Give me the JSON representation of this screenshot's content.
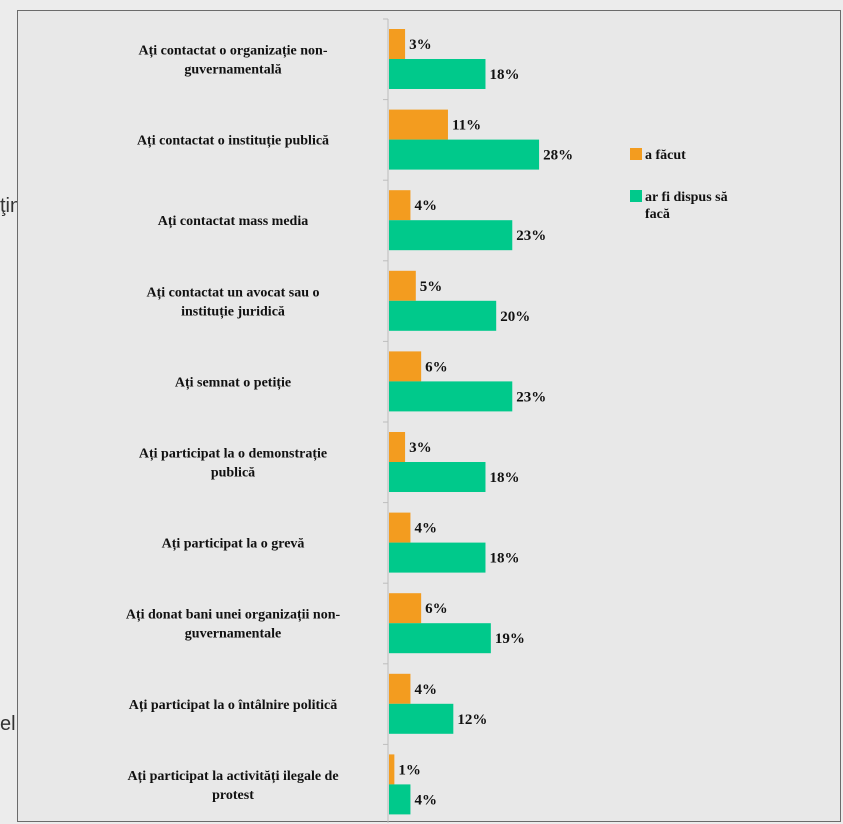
{
  "background_text": {
    "frag1": "ţin",
    "frag2": "el"
  },
  "chart_data": {
    "type": "bar",
    "orientation": "horizontal",
    "categories": [
      [
        "Ați contactat o organizație non-",
        "guvernamentală"
      ],
      [
        "Ați contactat o instituție publică"
      ],
      [
        "Ați contactat mass media"
      ],
      [
        "Ați contactat un avocat sau o",
        "instituție juridică"
      ],
      [
        "Ați semnat o petiție"
      ],
      [
        "Ați participat la o demonstrație",
        "publică"
      ],
      [
        "Ați participat la o grevă"
      ],
      [
        "Ați donat bani unei organizații non-",
        "guvernamentale"
      ],
      [
        "Ați participat la o întâlnire politică"
      ],
      [
        "Ați participat la activități ilegale de",
        "protest"
      ]
    ],
    "series": [
      {
        "name": "a făcut",
        "color": "#f39c1f",
        "values": [
          3,
          11,
          4,
          5,
          6,
          3,
          4,
          6,
          4,
          1
        ]
      },
      {
        "name": "ar fi dispus să facă",
        "legend_lines": [
          "ar fi dispus să",
          "facă"
        ],
        "color": "#00c98b",
        "values": [
          18,
          28,
          23,
          20,
          23,
          18,
          18,
          19,
          12,
          4
        ]
      }
    ],
    "value_suffix": "%",
    "xlim": [
      0,
      50
    ],
    "legend_position": "right"
  }
}
